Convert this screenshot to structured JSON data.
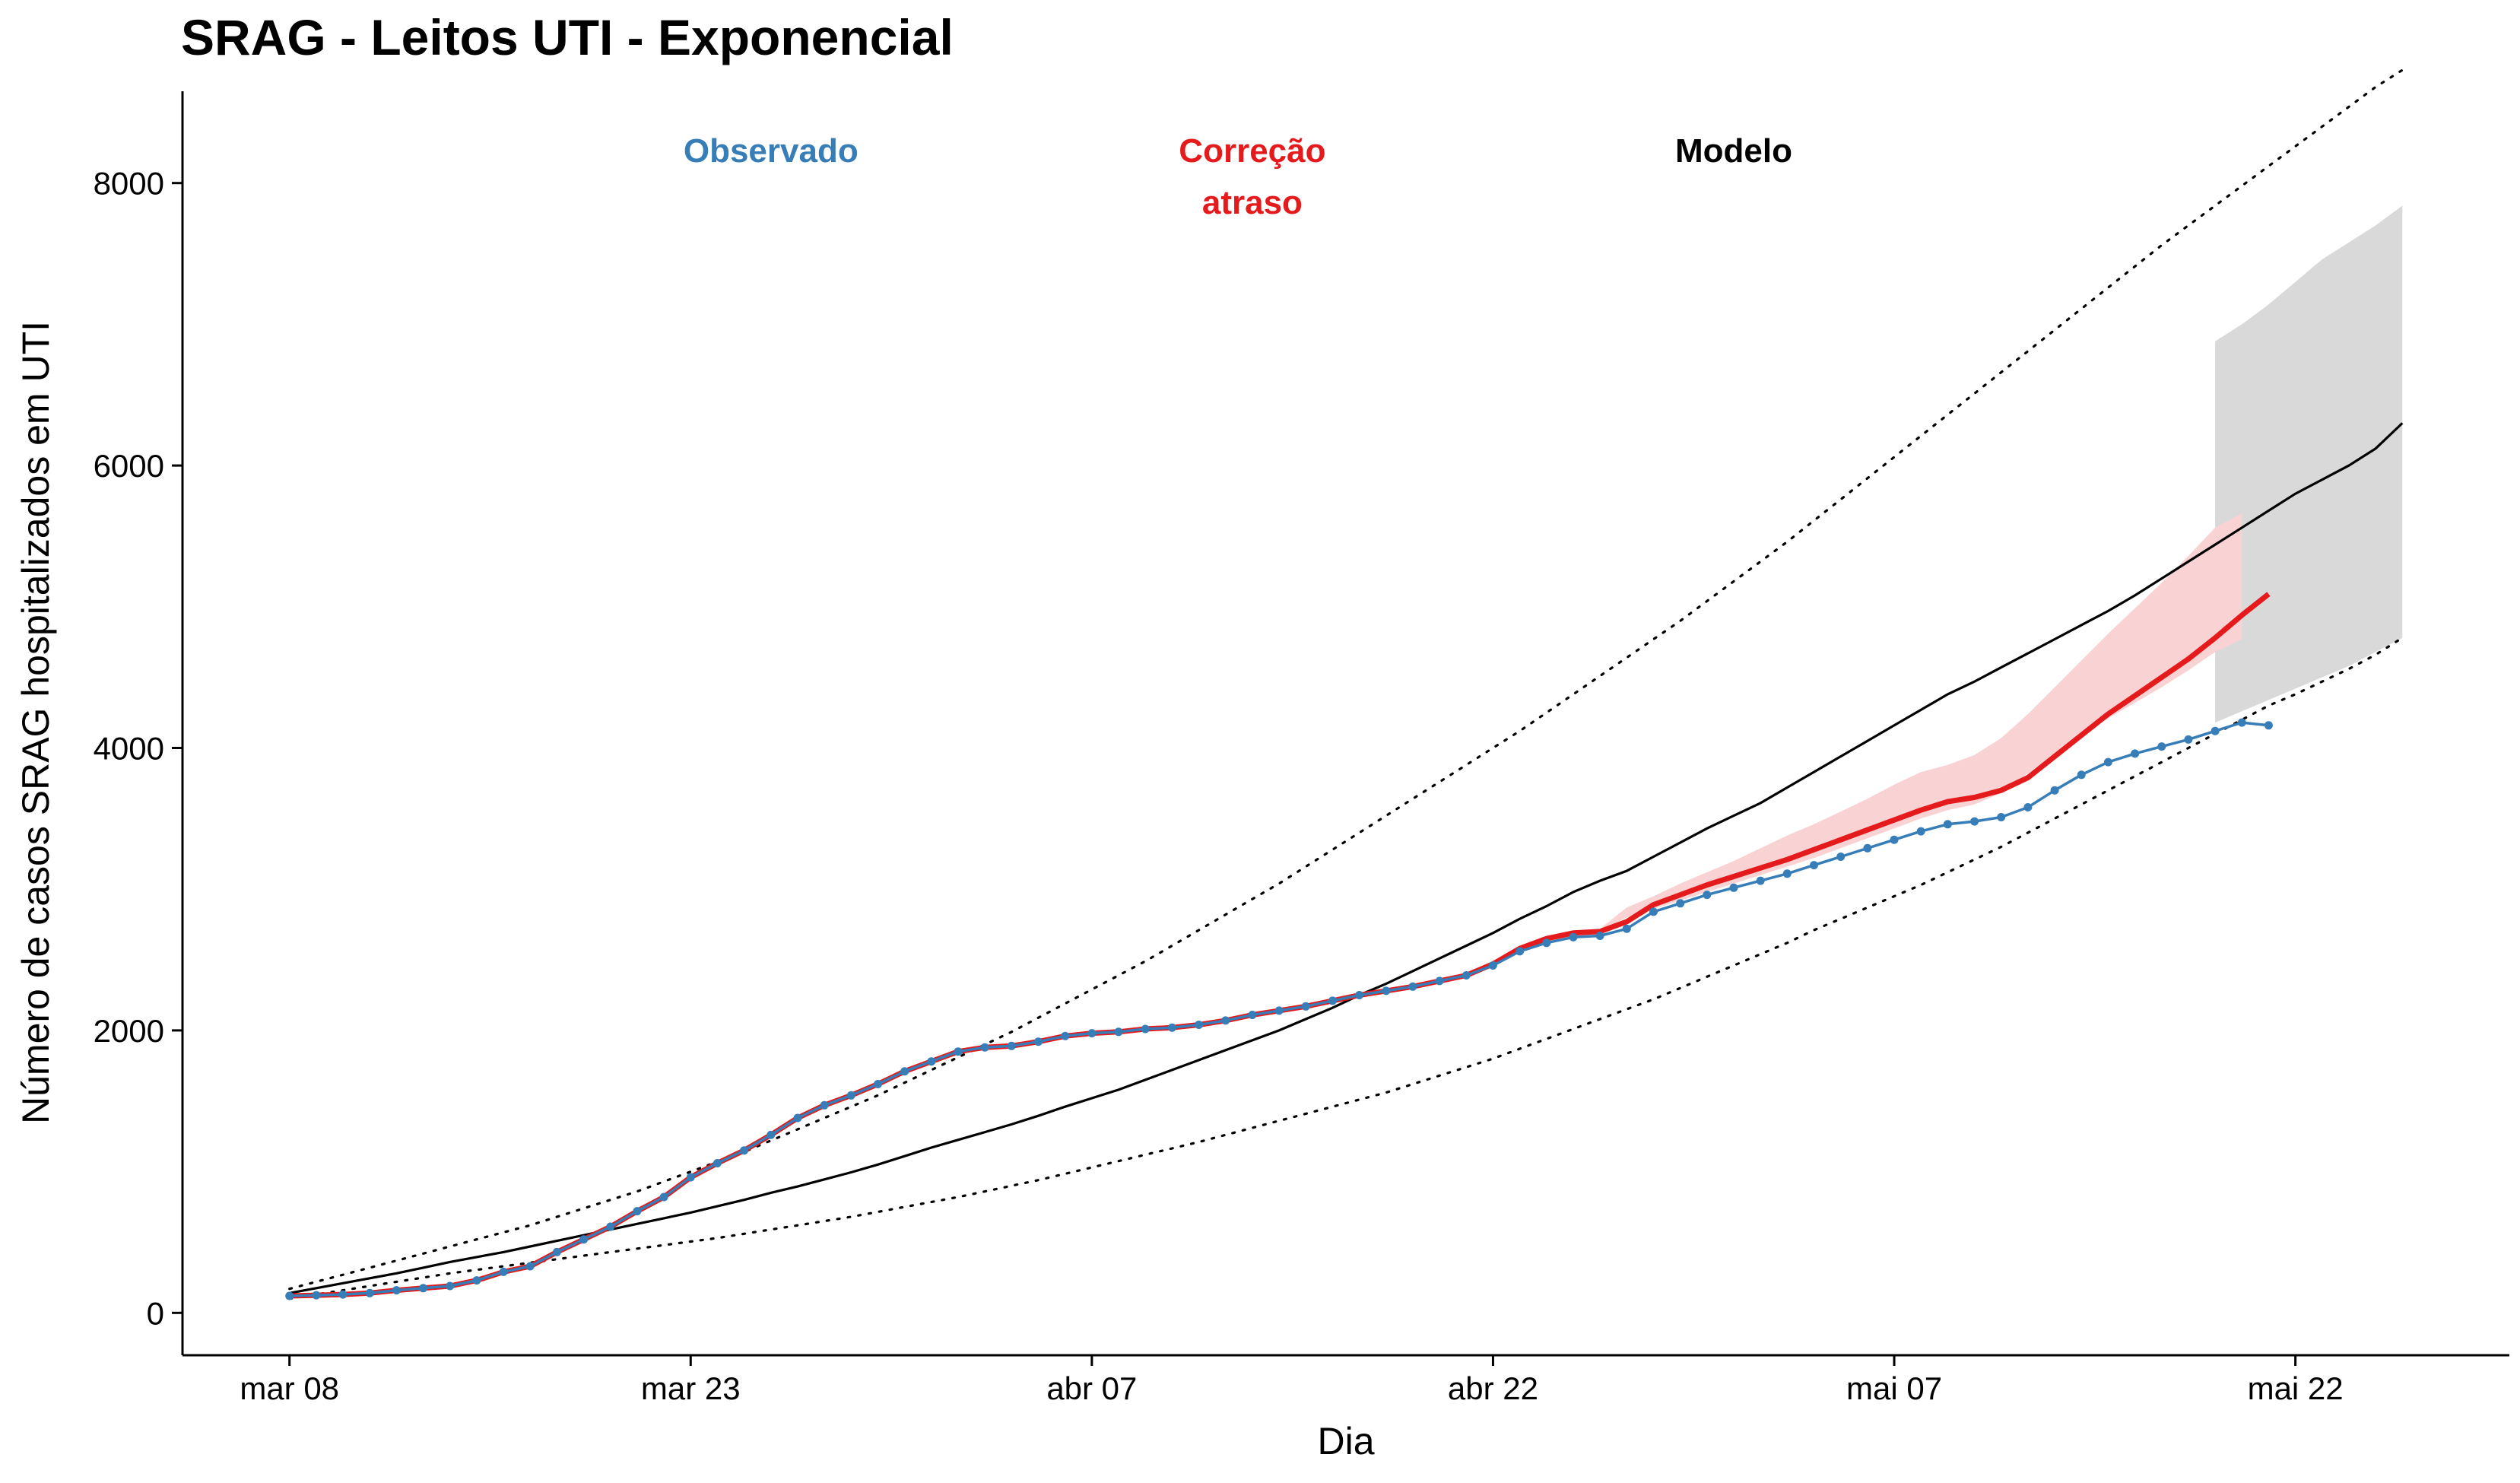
{
  "chart_data": {
    "type": "line",
    "title": "SRAG - Leitos UTI - Exponencial",
    "xlabel": "Dia",
    "ylabel": "Número de casos SRAG hospitalizados em UTI",
    "x_start_date": "2020-03-08",
    "x_ticks": [
      {
        "day": 0,
        "label": "mar 08"
      },
      {
        "day": 15,
        "label": "mar 23"
      },
      {
        "day": 30,
        "label": "abr 07"
      },
      {
        "day": 45,
        "label": "abr 22"
      },
      {
        "day": 60,
        "label": "mai 07"
      },
      {
        "day": 75,
        "label": "mai 22"
      }
    ],
    "xlim": [
      -4,
      83
    ],
    "ylim": [
      -300,
      8650
    ],
    "y_ticks": [
      0,
      2000,
      4000,
      6000,
      8000
    ],
    "grid": false,
    "annotations": [
      {
        "text": "Observado",
        "color": "#377EB8",
        "day": 18,
        "value": 8150
      },
      {
        "text": "Correção atraso",
        "lines": [
          "Correção",
          "atraso"
        ],
        "color": "#E41A1C",
        "day": 36,
        "value": 8150
      },
      {
        "text": "Modelo",
        "color": "#000000",
        "day": 54,
        "value": 8150
      }
    ],
    "colors": {
      "observed": "#377EB8",
      "corrected": "#E41A1C",
      "corrected_band": "#F9D3D3",
      "model": "#000000",
      "forecast_band": "#D9D9D9"
    },
    "series": [
      {
        "name": "Observado",
        "x_start": 0,
        "values": [
          120,
          125,
          130,
          140,
          160,
          175,
          190,
          230,
          290,
          330,
          430,
          520,
          610,
          720,
          820,
          960,
          1060,
          1150,
          1260,
          1380,
          1470,
          1540,
          1620,
          1710,
          1780,
          1850,
          1880,
          1890,
          1920,
          1960,
          1980,
          1990,
          2010,
          2020,
          2040,
          2070,
          2110,
          2140,
          2170,
          2210,
          2250,
          2280,
          2310,
          2350,
          2390,
          2460,
          2560,
          2620,
          2660,
          2670,
          2720,
          2840,
          2900,
          2960,
          3010,
          3060,
          3110,
          3170,
          3230,
          3290,
          3350,
          3410,
          3460,
          3480,
          3510,
          3580,
          3700,
          3810,
          3900,
          3960,
          4010,
          4060,
          4120,
          4180,
          4160
        ]
      },
      {
        "name": "Correção atraso",
        "x_start": 0,
        "values": [
          120,
          125,
          130,
          140,
          160,
          175,
          190,
          230,
          290,
          330,
          430,
          520,
          610,
          720,
          820,
          960,
          1060,
          1150,
          1260,
          1380,
          1470,
          1540,
          1620,
          1710,
          1780,
          1850,
          1880,
          1890,
          1920,
          1960,
          1980,
          1990,
          2010,
          2020,
          2040,
          2070,
          2110,
          2140,
          2170,
          2210,
          2250,
          2280,
          2310,
          2350,
          2390,
          2470,
          2580,
          2650,
          2690,
          2700,
          2770,
          2890,
          2960,
          3030,
          3090,
          3150,
          3210,
          3280,
          3350,
          3420,
          3490,
          3560,
          3620,
          3650,
          3700,
          3790,
          3940,
          4090,
          4240,
          4370,
          4500,
          4630,
          4780,
          4940,
          5090
        ],
        "band_x_start": 49,
        "band_lower": [
          2700,
          2800,
          2860,
          2920,
          2980,
          3040,
          3100,
          3160,
          3220,
          3290,
          3360,
          3430,
          3500,
          3560,
          3600,
          3680,
          3820,
          3960,
          4090,
          4210,
          4320,
          4430,
          4550,
          4680,
          4770
        ],
        "band_upper": [
          2720,
          2870,
          2950,
          3040,
          3120,
          3200,
          3290,
          3380,
          3460,
          3550,
          3640,
          3740,
          3830,
          3880,
          3950,
          4070,
          4240,
          4430,
          4620,
          4810,
          4990,
          5170,
          5360,
          5560,
          5660
        ]
      },
      {
        "name": "Modelo",
        "x_start": 0,
        "values": [
          140,
          175,
          210,
          245,
          280,
          320,
          360,
          395,
          430,
          470,
          510,
          550,
          590,
          630,
          670,
          710,
          755,
          800,
          850,
          895,
          945,
          995,
          1050,
          1110,
          1170,
          1225,
          1280,
          1335,
          1395,
          1460,
          1520,
          1580,
          1650,
          1720,
          1790,
          1860,
          1930,
          2000,
          2080,
          2160,
          2250,
          2330,
          2420,
          2510,
          2600,
          2690,
          2790,
          2880,
          2980,
          3060,
          3130,
          3230,
          3330,
          3430,
          3520,
          3610,
          3720,
          3830,
          3940,
          4050,
          4160,
          4270,
          4380,
          4470,
          4570,
          4670,
          4770,
          4870,
          4970,
          5080,
          5200,
          5320,
          5440,
          5560,
          5680,
          5800,
          5900,
          6000,
          6120,
          6300
        ],
        "lower": [
          100,
          130,
          160,
          190,
          220,
          250,
          280,
          305,
          330,
          355,
          380,
          405,
          430,
          455,
          480,
          505,
          530,
          560,
          590,
          620,
          650,
          680,
          715,
          750,
          785,
          820,
          860,
          900,
          940,
          985,
          1030,
          1075,
          1120,
          1165,
          1210,
          1260,
          1310,
          1360,
          1410,
          1460,
          1510,
          1560,
          1620,
          1680,
          1740,
          1800,
          1870,
          1940,
          2010,
          2080,
          2150,
          2220,
          2300,
          2380,
          2460,
          2540,
          2620,
          2710,
          2790,
          2870,
          2950,
          3030,
          3120,
          3210,
          3300,
          3400,
          3500,
          3600,
          3700,
          3800,
          3900,
          4000,
          4100,
          4200,
          4300,
          4380,
          4470,
          4560,
          4660,
          4780
        ],
        "upper": [
          170,
          220,
          270,
          320,
          370,
          420,
          470,
          520,
          570,
          620,
          680,
          740,
          800,
          860,
          930,
          1000,
          1070,
          1140,
          1220,
          1300,
          1380,
          1460,
          1540,
          1630,
          1720,
          1810,
          1900,
          1990,
          2090,
          2190,
          2290,
          2390,
          2490,
          2600,
          2710,
          2820,
          2930,
          3040,
          3160,
          3280,
          3400,
          3520,
          3640,
          3760,
          3880,
          4000,
          4120,
          4250,
          4380,
          4510,
          4640,
          4770,
          4900,
          5040,
          5180,
          5320,
          5460,
          5610,
          5760,
          5910,
          6060,
          6210,
          6360,
          6510,
          6660,
          6810,
          6960,
          7110,
          7260,
          7410,
          7560,
          7700,
          7840,
          7980,
          8120,
          8260,
          8400,
          8540,
          8680,
          8800
        ]
      }
    ],
    "forecast_band": {
      "x_start": 72,
      "x_end": 79,
      "lower": [
        4180,
        4260,
        4340,
        4420,
        4500,
        4580,
        4680,
        4780
      ],
      "upper": [
        6880,
        7000,
        7140,
        7300,
        7460,
        7580,
        7700,
        7840
      ]
    }
  }
}
